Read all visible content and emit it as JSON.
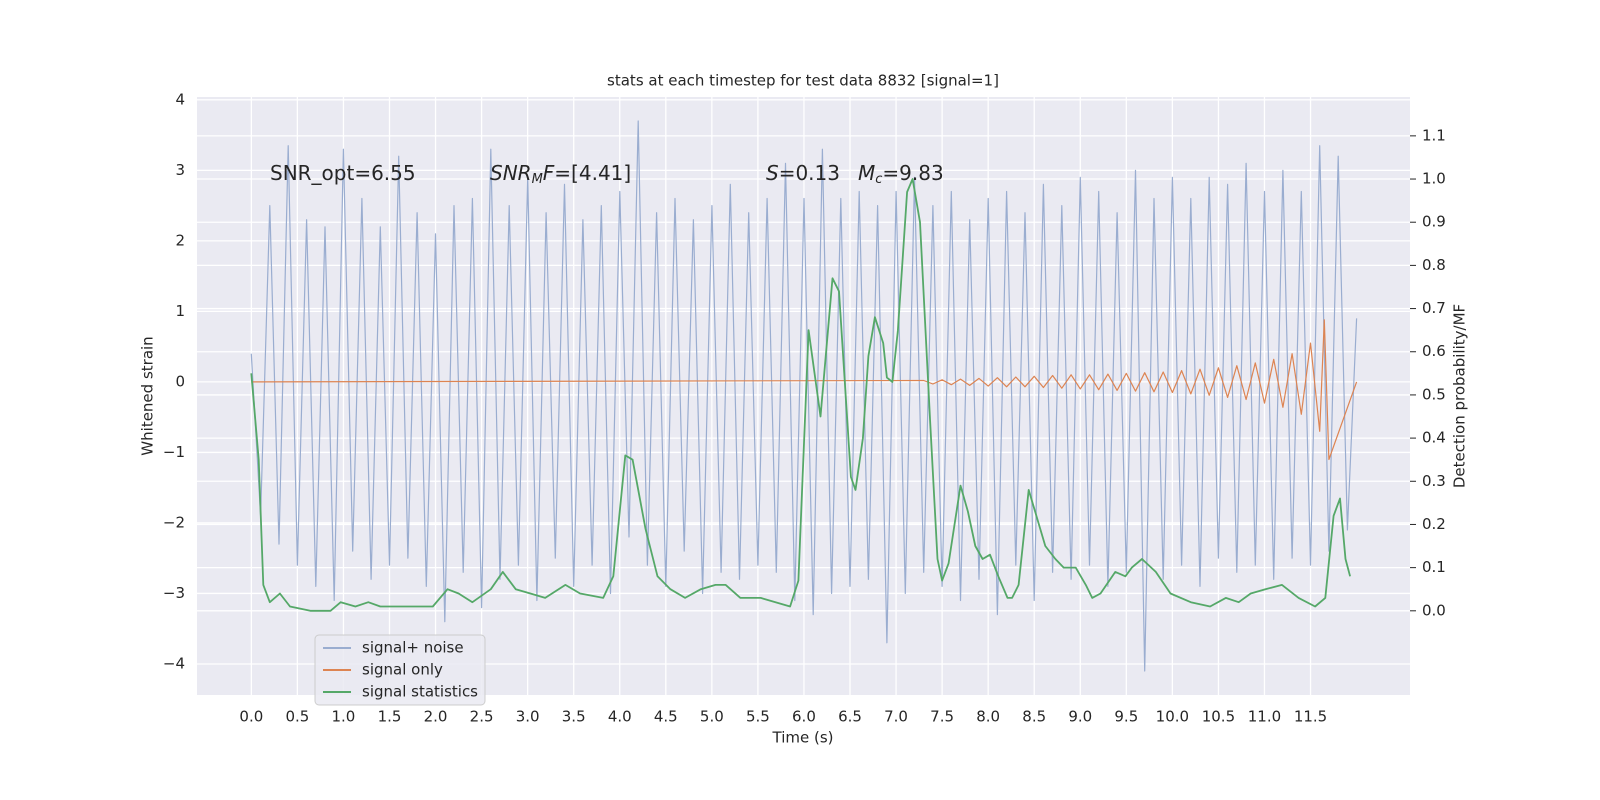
{
  "chart_data": {
    "type": "line",
    "title": "stats at each timestep for test data 8832 [signal=1]",
    "xlabel": "Time (s)",
    "ylabel": "Whitened strain",
    "y2label": "Detection probability/MF",
    "annotations": [
      [
        "SNR_opt=6.55"
      ],
      [
        "SNR",
        "M",
        "F",
        "=[4.41]"
      ],
      [
        "S",
        "=0.13"
      ],
      [
        "M",
        "c",
        "=9.83"
      ]
    ],
    "grid": true,
    "legend": "lower left",
    "xlim": [
      -0.59,
      12.58
    ],
    "ylim": [
      -4.44,
      4.04
    ],
    "y2lim": [
      -0.195,
      1.19
    ],
    "xticks": [
      {
        "value": 0,
        "label": "0.0"
      },
      {
        "value": 0.5,
        "label": "0.5"
      },
      {
        "value": 1,
        "label": "1.0"
      },
      {
        "value": 1.5,
        "label": "1.5"
      },
      {
        "value": 2,
        "label": "2.0"
      },
      {
        "value": 2.5,
        "label": "2.5"
      },
      {
        "value": 3,
        "label": "3.0"
      },
      {
        "value": 3.5,
        "label": "3.5"
      },
      {
        "value": 4,
        "label": "4.0"
      },
      {
        "value": 4.5,
        "label": "4.5"
      },
      {
        "value": 5,
        "label": "5.0"
      },
      {
        "value": 5.5,
        "label": "5.5"
      },
      {
        "value": 6,
        "label": "6.0"
      },
      {
        "value": 6.5,
        "label": "6.5"
      },
      {
        "value": 7,
        "label": "7.0"
      },
      {
        "value": 7.5,
        "label": "7.5"
      },
      {
        "value": 8,
        "label": "8.0"
      },
      {
        "value": 8.5,
        "label": "8.5"
      },
      {
        "value": 9,
        "label": "9.0"
      },
      {
        "value": 9.5,
        "label": "9.5"
      },
      {
        "value": 10,
        "label": "10.0"
      },
      {
        "value": 10.5,
        "label": "10.5"
      },
      {
        "value": 11,
        "label": "11.0"
      },
      {
        "value": 11.5,
        "label": "11.5"
      }
    ],
    "yticks": [
      {
        "value": -4,
        "label": "−4"
      },
      {
        "value": -3,
        "label": "−3"
      },
      {
        "value": -2,
        "label": "−2"
      },
      {
        "value": -1,
        "label": "−1"
      },
      0,
      1,
      2,
      3,
      4
    ],
    "y2ticks": [
      {
        "value": 0,
        "label": "0.0"
      },
      {
        "value": 0.1,
        "label": "0.1"
      },
      {
        "value": 0.2,
        "label": "0.2"
      },
      {
        "value": 0.3,
        "label": "0.3"
      },
      {
        "value": 0.4,
        "label": "0.4"
      },
      {
        "value": 0.5,
        "label": "0.5"
      },
      {
        "value": 0.6,
        "label": "0.6"
      },
      {
        "value": 0.7,
        "label": "0.7"
      },
      {
        "value": 0.8,
        "label": "0.8"
      },
      {
        "value": 0.9,
        "label": "0.9"
      },
      {
        "value": 1,
        "label": "1.0"
      },
      {
        "value": 1.1,
        "label": "1.1"
      }
    ],
    "series": [
      {
        "name": "signal+ noise",
        "color": "#9aadd0",
        "axis": "y",
        "x": [
          0,
          0.1,
          0.2,
          0.3,
          0.4,
          0.5,
          0.6,
          0.7,
          0.8,
          0.9,
          1,
          1.1,
          1.2,
          1.3,
          1.4,
          1.5,
          1.6,
          1.7,
          1.8,
          1.9,
          2,
          2.1,
          2.2,
          2.3,
          2.4,
          2.5,
          2.6,
          2.7,
          2.8,
          2.9,
          3,
          3.1,
          3.2,
          3.3,
          3.4,
          3.5,
          3.6,
          3.7,
          3.8,
          3.9,
          4,
          4.1,
          4.2,
          4.3,
          4.4,
          4.5,
          4.6,
          4.7,
          4.8,
          4.9,
          5,
          5.1,
          5.2,
          5.3,
          5.4,
          5.5,
          5.6,
          5.7,
          5.8,
          5.9,
          6,
          6.1,
          6.2,
          6.3,
          6.4,
          6.5,
          6.6,
          6.7,
          6.8,
          6.9,
          7,
          7.1,
          7.2,
          7.3,
          7.4,
          7.5,
          7.6,
          7.7,
          7.8,
          7.9,
          8,
          8.1,
          8.2,
          8.3,
          8.4,
          8.5,
          8.6,
          8.7,
          8.8,
          8.9,
          9,
          9.1,
          9.2,
          9.3,
          9.4,
          9.5,
          9.6,
          9.7,
          9.8,
          9.9,
          10,
          10.1,
          10.2,
          10.3,
          10.4,
          10.5,
          10.6,
          10.7,
          10.8,
          10.9,
          11,
          11.1,
          11.2,
          11.3,
          11.4,
          11.5,
          11.6,
          11.7,
          11.8,
          11.9,
          12
        ],
        "values": [
          0.4,
          -1.9,
          2.5,
          -2.3,
          3.35,
          -2.6,
          2.3,
          -2.9,
          2.2,
          -3.1,
          3.3,
          -2.4,
          2.6,
          -2.8,
          2.2,
          -2.6,
          3.2,
          -2.5,
          2.4,
          -2.9,
          2.1,
          -3.4,
          2.5,
          -2.7,
          2.6,
          -3.2,
          3.3,
          -2.8,
          2.5,
          -2.6,
          2.9,
          -3.1,
          2.4,
          -2.5,
          2.8,
          -2.9,
          2.3,
          -2.6,
          2.5,
          -3,
          2.7,
          -2.2,
          3.7,
          -2.6,
          2.4,
          -2.9,
          2.6,
          -2.4,
          2.3,
          -3,
          2.5,
          -2.7,
          2.8,
          -2.8,
          2.4,
          -2.6,
          2.6,
          -2.7,
          3.1,
          -3.1,
          2.6,
          -3.3,
          3.3,
          -3,
          2.6,
          -2.9,
          2.7,
          -2.8,
          2.5,
          -3.7,
          2.7,
          -3,
          2.9,
          -2.7,
          2.5,
          -2.9,
          2.7,
          -3.1,
          2.3,
          -2.8,
          2.6,
          -3.3,
          2.7,
          -2.6,
          2.4,
          -3.1,
          2.8,
          -2.7,
          2.5,
          -2.8,
          2.9,
          -2.6,
          2.7,
          -2.9,
          2.4,
          -2.7,
          3,
          -4.1,
          2.6,
          -2.8,
          2.9,
          -2.6,
          2.6,
          -2.9,
          2.9,
          -2.5,
          2.8,
          -2.7,
          3.1,
          -2.6,
          2.7,
          -2.8,
          3,
          -2.5,
          2.7,
          -2.6,
          3.35,
          -2.4,
          3.2,
          -2.1,
          0.9
        ]
      },
      {
        "name": "signal only",
        "color": "#dd8452",
        "axis": "y",
        "x": [
          0,
          7.3,
          7.4,
          7.5,
          7.6,
          7.7,
          7.8,
          7.9,
          8,
          8.1,
          8.2,
          8.3,
          8.4,
          8.5,
          8.6,
          8.7,
          8.8,
          8.9,
          9,
          9.1,
          9.2,
          9.3,
          9.4,
          9.5,
          9.6,
          9.7,
          9.8,
          9.9,
          10,
          10.1,
          10.2,
          10.3,
          10.4,
          10.5,
          10.6,
          10.7,
          10.8,
          10.9,
          11,
          11.1,
          11.2,
          11.3,
          11.4,
          11.5,
          11.6,
          11.65,
          11.7,
          12
        ],
        "values": [
          0,
          0.02,
          -0.03,
          0.03,
          -0.04,
          0.04,
          -0.05,
          0.05,
          -0.06,
          0.06,
          -0.07,
          0.07,
          -0.07,
          0.08,
          -0.08,
          0.09,
          -0.09,
          0.1,
          -0.1,
          0.1,
          -0.11,
          0.11,
          -0.12,
          0.12,
          -0.13,
          0.13,
          -0.14,
          0.14,
          -0.15,
          0.16,
          -0.17,
          0.18,
          -0.19,
          0.2,
          -0.22,
          0.23,
          -0.25,
          0.27,
          -0.3,
          0.32,
          -0.36,
          0.4,
          -0.46,
          0.55,
          -0.7,
          0.88,
          -1.1,
          0
        ]
      },
      {
        "name": "signal statistics",
        "color": "#55a868",
        "axis": "y2",
        "x": [
          0,
          0.08,
          0.13,
          0.2,
          0.31,
          0.42,
          0.64,
          0.86,
          0.97,
          1.13,
          1.27,
          1.4,
          1.56,
          1.83,
          1.97,
          2.13,
          2.25,
          2.4,
          2.6,
          2.73,
          2.87,
          3.03,
          3.19,
          3.41,
          3.57,
          3.82,
          3.93,
          4.06,
          4.14,
          4.28,
          4.41,
          4.55,
          4.71,
          4.88,
          5.04,
          5.15,
          5.31,
          5.53,
          5.85,
          5.94,
          6.05,
          6.18,
          6.31,
          6.38,
          6.51,
          6.56,
          6.64,
          6.7,
          6.77,
          6.86,
          6.9,
          6.96,
          7.02,
          7.12,
          7.18,
          7.26,
          7.37,
          7.45,
          7.5,
          7.57,
          7.7,
          7.78,
          7.86,
          7.94,
          8.02,
          8.11,
          8.21,
          8.26,
          8.33,
          8.44,
          8.51,
          8.62,
          8.73,
          8.82,
          8.95,
          9.06,
          9.13,
          9.22,
          9.38,
          9.49,
          9.56,
          9.67,
          9.82,
          9.98,
          10.2,
          10.41,
          10.58,
          10.72,
          10.85,
          11.01,
          11.19,
          11.37,
          11.55,
          11.66,
          11.75,
          11.82,
          11.88,
          11.93
        ],
        "values": [
          0.55,
          0.35,
          0.06,
          0.02,
          0.04,
          0.01,
          0,
          0,
          0.02,
          0.01,
          0.02,
          0.01,
          0.01,
          0.01,
          0.01,
          0.05,
          0.04,
          0.02,
          0.05,
          0.09,
          0.05,
          0.04,
          0.03,
          0.06,
          0.04,
          0.03,
          0.08,
          0.36,
          0.35,
          0.19,
          0.08,
          0.05,
          0.03,
          0.05,
          0.06,
          0.06,
          0.03,
          0.03,
          0.01,
          0.07,
          0.65,
          0.45,
          0.77,
          0.74,
          0.31,
          0.28,
          0.4,
          0.59,
          0.68,
          0.62,
          0.54,
          0.53,
          0.65,
          0.97,
          1,
          0.9,
          0.44,
          0.12,
          0.07,
          0.11,
          0.29,
          0.23,
          0.15,
          0.12,
          0.13,
          0.08,
          0.03,
          0.03,
          0.06,
          0.28,
          0.23,
          0.15,
          0.12,
          0.1,
          0.1,
          0.06,
          0.03,
          0.04,
          0.09,
          0.08,
          0.1,
          0.12,
          0.09,
          0.04,
          0.02,
          0.01,
          0.03,
          0.02,
          0.04,
          0.05,
          0.06,
          0.03,
          0.01,
          0.03,
          0.22,
          0.26,
          0.12,
          0.08
        ]
      }
    ]
  }
}
